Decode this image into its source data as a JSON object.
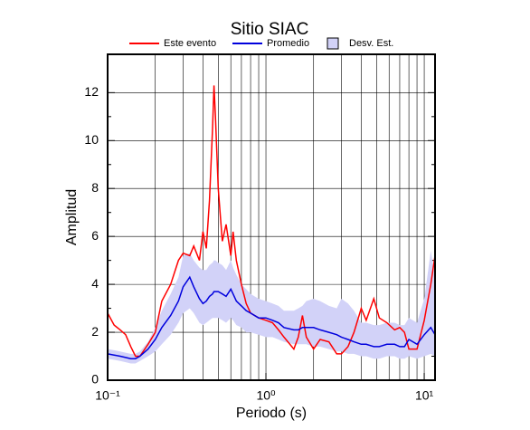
{
  "chart_data": {
    "type": "line",
    "title": "Sitio SIAC",
    "xlabel": "Periodo (s)",
    "ylabel": "Amplitud",
    "xscale": "log",
    "grid": true,
    "xlim": [
      0.1,
      11.7
    ],
    "xticks": [
      {
        "value": 0.1,
        "label": "10⁻¹"
      },
      {
        "value": 1,
        "label": "10⁰"
      },
      {
        "value": 10,
        "label": "10¹"
      }
    ],
    "ylim": [
      0,
      13.6
    ],
    "yticks": [
      0,
      2,
      4,
      6,
      8,
      10,
      12
    ],
    "x": [
      0.1,
      0.11,
      0.12,
      0.13,
      0.14,
      0.15,
      0.16,
      0.18,
      0.2,
      0.22,
      0.25,
      0.28,
      0.3,
      0.33,
      0.35,
      0.38,
      0.4,
      0.42,
      0.44,
      0.46,
      0.47,
      0.48,
      0.5,
      0.53,
      0.56,
      0.6,
      0.62,
      0.65,
      0.7,
      0.75,
      0.8,
      0.9,
      1.0,
      1.1,
      1.2,
      1.3,
      1.5,
      1.6,
      1.7,
      1.8,
      2.0,
      2.2,
      2.5,
      2.8,
      3.0,
      3.3,
      3.6,
      4.0,
      4.3,
      4.8,
      5.2,
      5.8,
      6.5,
      7.0,
      7.5,
      8.0,
      9.0,
      10,
      11,
      11.7
    ],
    "series": [
      {
        "name": "Este evento",
        "color": "#ff0000",
        "values": [
          2.8,
          2.3,
          2.1,
          1.9,
          1.4,
          1.0,
          1.0,
          1.5,
          2.0,
          3.3,
          4.0,
          5.0,
          5.3,
          5.2,
          5.6,
          5.0,
          6.2,
          5.5,
          7.5,
          10.5,
          12.3,
          11.0,
          8.0,
          5.8,
          6.5,
          5.2,
          6.2,
          5.0,
          4.0,
          3.2,
          2.8,
          2.6,
          2.5,
          2.4,
          2.1,
          1.8,
          1.3,
          1.8,
          2.7,
          1.8,
          1.3,
          1.7,
          1.6,
          1.1,
          1.1,
          1.4,
          2.0,
          3.0,
          2.5,
          3.4,
          2.6,
          2.4,
          2.1,
          2.2,
          2.0,
          1.3,
          1.3,
          2.5,
          4.0,
          5.2
        ]
      },
      {
        "name": "Promedio",
        "color": "#0000dd",
        "values": [
          1.1,
          1.05,
          1.0,
          0.95,
          0.9,
          0.9,
          1.0,
          1.3,
          1.7,
          2.2,
          2.7,
          3.3,
          3.9,
          4.3,
          3.9,
          3.4,
          3.2,
          3.3,
          3.5,
          3.6,
          3.7,
          3.7,
          3.7,
          3.6,
          3.5,
          3.8,
          3.6,
          3.3,
          3.1,
          2.9,
          2.8,
          2.6,
          2.6,
          2.5,
          2.4,
          2.2,
          2.1,
          2.1,
          2.2,
          2.2,
          2.2,
          2.1,
          2.0,
          1.9,
          1.8,
          1.7,
          1.6,
          1.5,
          1.5,
          1.4,
          1.4,
          1.5,
          1.5,
          1.4,
          1.4,
          1.7,
          1.5,
          1.9,
          2.2,
          1.9
        ]
      },
      {
        "name": "Desv. Est.",
        "color": "#d2d2f8",
        "upper": [
          1.3,
          1.25,
          1.2,
          1.15,
          1.1,
          1.1,
          1.2,
          1.6,
          2.2,
          2.9,
          3.6,
          4.3,
          5.2,
          5.3,
          5.0,
          4.7,
          4.6,
          4.6,
          4.8,
          4.9,
          5.0,
          5.0,
          4.9,
          4.8,
          4.6,
          5.0,
          4.7,
          4.4,
          4.0,
          3.8,
          3.6,
          3.4,
          3.3,
          3.2,
          3.1,
          2.9,
          2.9,
          3.0,
          3.1,
          3.3,
          3.4,
          3.3,
          3.1,
          3.0,
          3.4,
          3.2,
          2.9,
          2.4,
          2.4,
          2.3,
          2.3,
          2.4,
          2.4,
          2.3,
          2.3,
          2.6,
          2.4,
          3.4,
          5.4,
          4.3
        ],
        "lower": [
          0.9,
          0.85,
          0.8,
          0.75,
          0.7,
          0.7,
          0.8,
          1.0,
          1.2,
          1.5,
          1.9,
          2.4,
          2.8,
          3.0,
          2.8,
          2.4,
          2.3,
          2.4,
          2.5,
          2.6,
          2.6,
          2.6,
          2.6,
          2.5,
          2.4,
          2.6,
          2.5,
          2.3,
          2.2,
          2.0,
          2.0,
          1.9,
          1.8,
          1.8,
          1.7,
          1.6,
          1.5,
          1.5,
          1.5,
          1.5,
          1.4,
          1.4,
          1.3,
          1.2,
          1.2,
          1.1,
          1.1,
          1.0,
          1.0,
          0.9,
          0.9,
          1.0,
          1.0,
          0.9,
          0.9,
          1.0,
          0.9,
          1.0,
          1.1,
          1.0
        ]
      }
    ]
  }
}
